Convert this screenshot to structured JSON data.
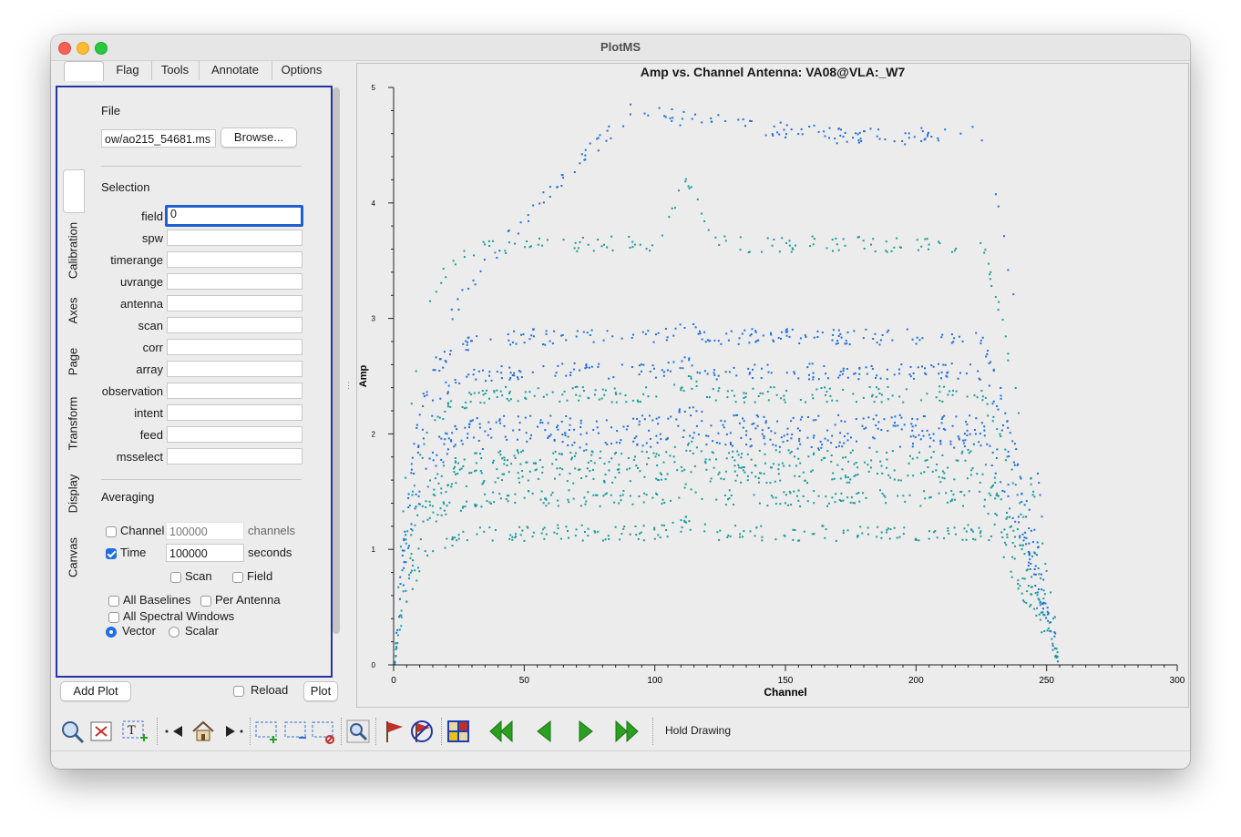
{
  "window": {
    "title": "PlotMS"
  },
  "tabs": [
    "",
    "Flag",
    "Tools",
    "Annotate",
    "Options"
  ],
  "side_tabs": [
    "Calibration",
    "Axes",
    "Page",
    "Transform",
    "Display",
    "Canvas"
  ],
  "file": {
    "heading": "File",
    "path": "ow/ao215_54681.ms",
    "browse_label": "Browse..."
  },
  "selection": {
    "heading": "Selection",
    "fields": [
      {
        "label": "field",
        "value": "0"
      },
      {
        "label": "spw",
        "value": ""
      },
      {
        "label": "timerange",
        "value": ""
      },
      {
        "label": "uvrange",
        "value": ""
      },
      {
        "label": "antenna",
        "value": ""
      },
      {
        "label": "scan",
        "value": ""
      },
      {
        "label": "corr",
        "value": ""
      },
      {
        "label": "array",
        "value": ""
      },
      {
        "label": "observation",
        "value": ""
      },
      {
        "label": "intent",
        "value": ""
      },
      {
        "label": "feed",
        "value": ""
      },
      {
        "label": "msselect",
        "value": ""
      }
    ]
  },
  "averaging": {
    "heading": "Averaging",
    "channel": {
      "label": "Channel",
      "value": "100000",
      "unit": "channels",
      "checked": false
    },
    "time": {
      "label": "Time",
      "value": "100000",
      "unit": "seconds",
      "checked": true
    },
    "scan": {
      "label": "Scan",
      "checked": false
    },
    "field": {
      "label": "Field",
      "checked": false
    },
    "all_baselines": {
      "label": "All Baselines",
      "checked": false
    },
    "per_antenna": {
      "label": "Per Antenna",
      "checked": false
    },
    "all_spw": {
      "label": "All Spectral Windows",
      "checked": false
    },
    "vector": {
      "label": "Vector",
      "selected": true
    },
    "scalar": {
      "label": "Scalar",
      "selected": false
    }
  },
  "bottom": {
    "add_plot": "Add Plot",
    "reload": "Reload",
    "plot": "Plot"
  },
  "toolbar": {
    "hold_drawing": "Hold Drawing"
  },
  "colors": {
    "series_blue": "#1f6fd8",
    "series_teal": "#1a9a9a",
    "panel_border": "#2433a8"
  },
  "chart_data": {
    "type": "scatter",
    "title": "Amp vs. Channel Antenna: VA08@VLA:_W7",
    "xlabel": "Channel",
    "ylabel": "Amp",
    "xlim": [
      0,
      300
    ],
    "ylim": [
      0,
      5
    ],
    "x_ticks": [
      "0",
      "50",
      "100",
      "150",
      "200",
      "250",
      "300"
    ],
    "y_ticks": [
      "0",
      "1",
      "2",
      "3",
      "4",
      "5"
    ],
    "grid": false,
    "bands": [
      {
        "color": "blue",
        "level": 4.7,
        "peak_channel": 170
      },
      {
        "color": "teal",
        "level": 3.65,
        "bump_channel": 112,
        "bump_value": 4.25
      },
      {
        "color": "blue",
        "level": 2.85
      },
      {
        "color": "blue",
        "level": 2.55
      },
      {
        "color": "teal",
        "level": 2.35
      },
      {
        "color": "blue",
        "level": 2.1
      },
      {
        "color": "blue",
        "level": 1.95
      },
      {
        "color": "teal",
        "level": 1.8
      },
      {
        "color": "teal",
        "level": 1.65
      },
      {
        "color": "teal",
        "level": 1.45
      },
      {
        "color": "teal",
        "level": 1.15
      }
    ],
    "channel_range": [
      0,
      254
    ]
  }
}
